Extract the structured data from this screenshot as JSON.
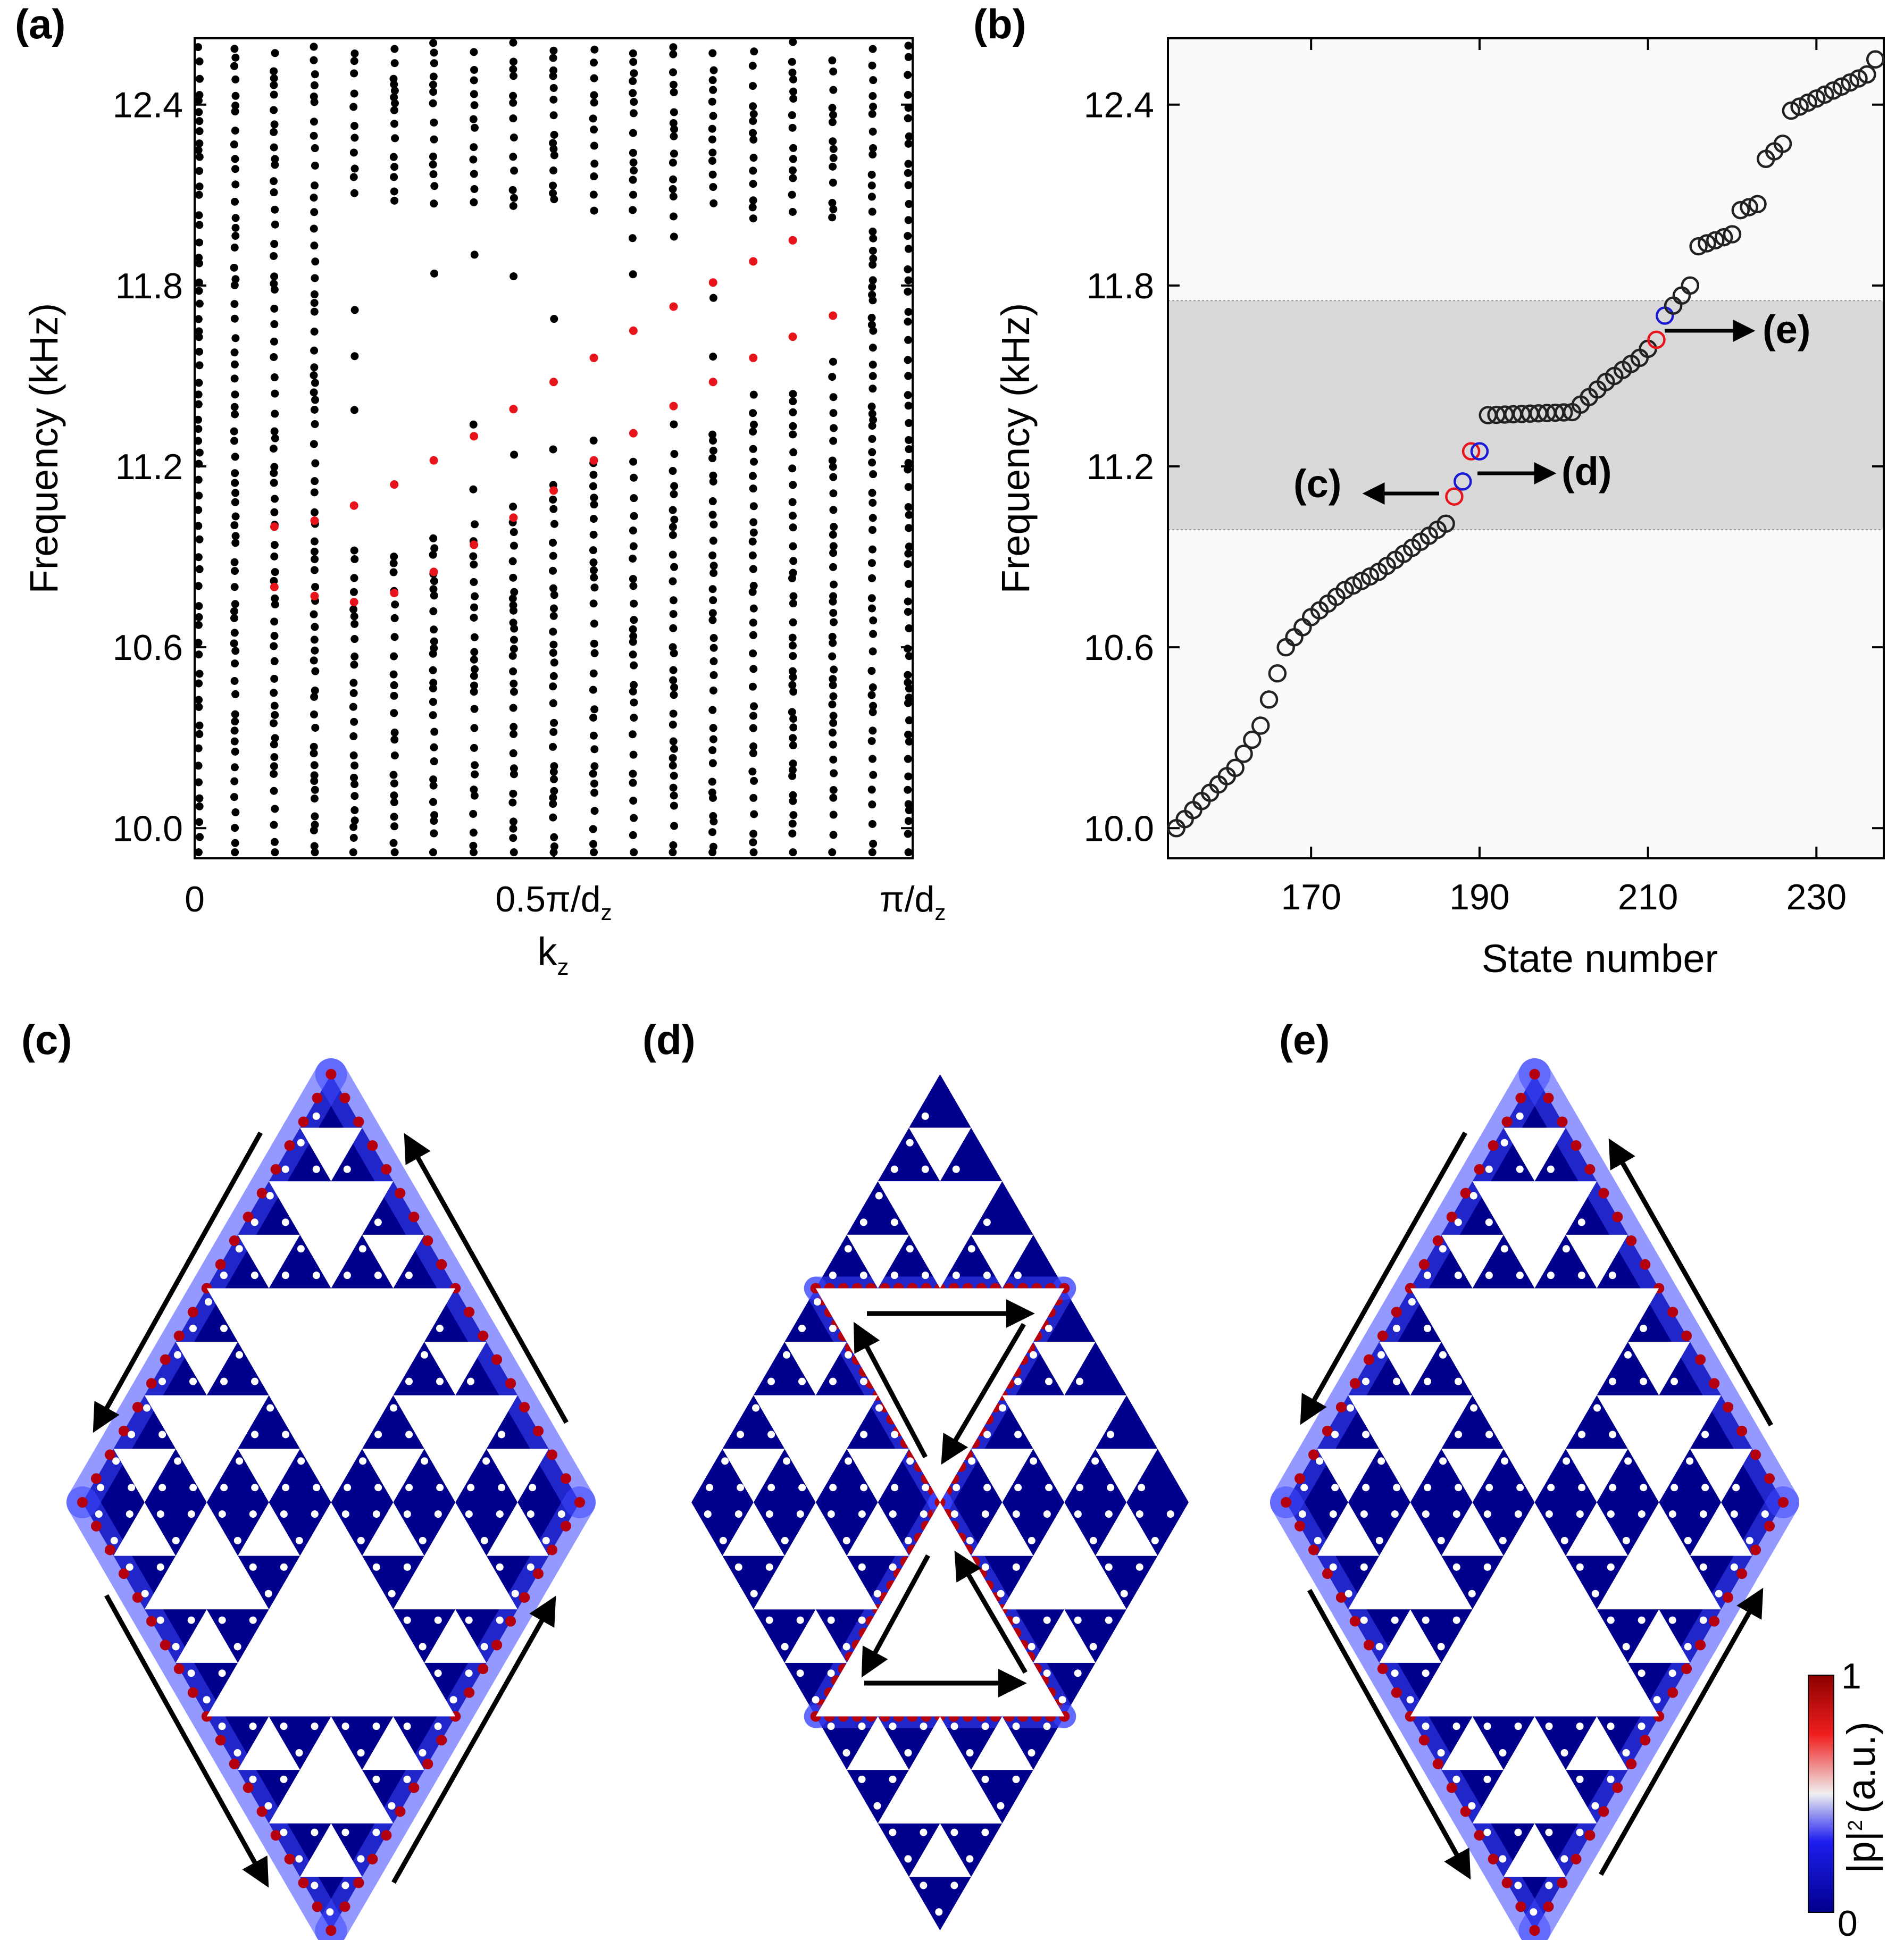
{
  "panels": {
    "a": "(a)",
    "b": "(b)",
    "c": "(c)",
    "d": "(d)",
    "e": "(e)"
  },
  "colors": {
    "bulk_marker": "#000000",
    "edge_marker": "#e8141c",
    "state_marker_default": "#222222",
    "state_marker_red": "#e8141c",
    "state_marker_blue": "#1a1ad6",
    "gap_band": "#d9d9d9",
    "field_low": "#00008c",
    "field_high": "#b4000f",
    "hole": "#ffffff"
  },
  "chart_data": [
    {
      "panel": "a",
      "type": "scatter",
      "ylabel": "Frequency (kHz)",
      "xlabel": "k",
      "xlabel_subscript": "z",
      "xlim": [
        0,
        1
      ],
      "ylim": [
        9.9,
        12.62
      ],
      "yticks": [
        10.0,
        10.6,
        11.2,
        11.8,
        12.4
      ],
      "ytick_labels": [
        "10.0",
        "10.6",
        "11.2",
        "11.8",
        "12.4"
      ],
      "xticks": [
        0,
        0.5,
        1
      ],
      "xtick_labels": [
        {
          "main": "0",
          "sub": ""
        },
        {
          "main": "0.5π/d",
          "sub": "z"
        },
        {
          "main": "π/d",
          "sub": "z"
        }
      ],
      "kz_columns": [
        0.0,
        0.056,
        0.111,
        0.167,
        0.222,
        0.278,
        0.333,
        0.389,
        0.444,
        0.5,
        0.556,
        0.611,
        0.667,
        0.722,
        0.778,
        0.833,
        0.889,
        0.944,
        1.0
      ],
      "edge_branch_upper": [
        {
          "x": 0.111,
          "y": 11.0
        },
        {
          "x": 0.167,
          "y": 11.02
        },
        {
          "x": 0.222,
          "y": 11.07
        },
        {
          "x": 0.278,
          "y": 11.14
        },
        {
          "x": 0.333,
          "y": 11.22
        },
        {
          "x": 0.389,
          "y": 11.3
        },
        {
          "x": 0.444,
          "y": 11.39
        },
        {
          "x": 0.5,
          "y": 11.48
        },
        {
          "x": 0.556,
          "y": 11.56
        },
        {
          "x": 0.611,
          "y": 11.65
        },
        {
          "x": 0.667,
          "y": 11.73
        },
        {
          "x": 0.722,
          "y": 11.81
        },
        {
          "x": 0.778,
          "y": 11.88
        },
        {
          "x": 0.833,
          "y": 11.95
        }
      ],
      "edge_branch_lower": [
        {
          "x": 0.111,
          "y": 10.8
        },
        {
          "x": 0.167,
          "y": 10.77
        },
        {
          "x": 0.222,
          "y": 10.75
        },
        {
          "x": 0.278,
          "y": 10.78
        },
        {
          "x": 0.333,
          "y": 10.85
        },
        {
          "x": 0.389,
          "y": 10.94
        },
        {
          "x": 0.444,
          "y": 11.03
        },
        {
          "x": 0.5,
          "y": 11.12
        },
        {
          "x": 0.556,
          "y": 11.22
        },
        {
          "x": 0.611,
          "y": 11.31
        },
        {
          "x": 0.667,
          "y": 11.4
        },
        {
          "x": 0.722,
          "y": 11.48
        },
        {
          "x": 0.778,
          "y": 11.56
        },
        {
          "x": 0.833,
          "y": 11.63
        },
        {
          "x": 0.889,
          "y": 11.7
        }
      ]
    },
    {
      "panel": "b",
      "type": "scatter",
      "ylabel": "Frequency (kHz)",
      "xlabel": "State number",
      "xlim": [
        153,
        238
      ],
      "ylim": [
        9.9,
        12.62
      ],
      "xticks": [
        170,
        190,
        210,
        230
      ],
      "xtick_labels": [
        "170",
        "190",
        "210",
        "230"
      ],
      "yticks": [
        10.0,
        10.6,
        11.2,
        11.8,
        12.4
      ],
      "ytick_labels": [
        "10.0",
        "10.6",
        "11.2",
        "11.8",
        "12.4"
      ],
      "gap_band": [
        10.99,
        11.75
      ],
      "anchors": [
        {
          "x": 154,
          "y": 10.0
        },
        {
          "x": 157,
          "y": 10.09
        },
        {
          "x": 161,
          "y": 10.2
        },
        {
          "x": 164,
          "y": 10.34
        },
        {
          "x": 167,
          "y": 10.6
        },
        {
          "x": 170,
          "y": 10.7
        },
        {
          "x": 174,
          "y": 10.79
        },
        {
          "x": 178,
          "y": 10.85
        },
        {
          "x": 182,
          "y": 10.93
        },
        {
          "x": 186,
          "y": 11.01
        },
        {
          "x": 187,
          "y": 11.1
        },
        {
          "x": 188,
          "y": 11.15
        },
        {
          "x": 189,
          "y": 11.25
        },
        {
          "x": 190,
          "y": 11.25
        },
        {
          "x": 191,
          "y": 11.37
        },
        {
          "x": 201,
          "y": 11.38
        },
        {
          "x": 205,
          "y": 11.48
        },
        {
          "x": 209,
          "y": 11.56
        },
        {
          "x": 211,
          "y": 11.62
        },
        {
          "x": 212,
          "y": 11.7
        },
        {
          "x": 215,
          "y": 11.8
        },
        {
          "x": 216,
          "y": 11.93
        },
        {
          "x": 220,
          "y": 11.97
        },
        {
          "x": 221,
          "y": 12.05
        },
        {
          "x": 223,
          "y": 12.07
        },
        {
          "x": 224,
          "y": 12.22
        },
        {
          "x": 226,
          "y": 12.27
        },
        {
          "x": 227,
          "y": 12.38
        },
        {
          "x": 236,
          "y": 12.5
        },
        {
          "x": 237,
          "y": 12.55
        }
      ],
      "highlighted": [
        {
          "x": 187,
          "y": 11.1,
          "color": "red",
          "label": "(c)"
        },
        {
          "x": 188,
          "y": 11.15,
          "color": "blue",
          "label": "(d)"
        },
        {
          "x": 189,
          "y": 11.25,
          "color": "red"
        },
        {
          "x": 190,
          "y": 11.25,
          "color": "blue"
        },
        {
          "x": 211,
          "y": 11.62,
          "color": "red",
          "label": "(e)"
        },
        {
          "x": 212,
          "y": 11.7,
          "color": "blue"
        }
      ]
    },
    {
      "panel": "colorbar",
      "type": "heatmap",
      "label_main": "|p|",
      "label_sup": "2",
      "label_unit": "(a.u.)",
      "range": [
        0,
        1
      ],
      "tick_labels": [
        "1",
        "0"
      ]
    }
  ]
}
